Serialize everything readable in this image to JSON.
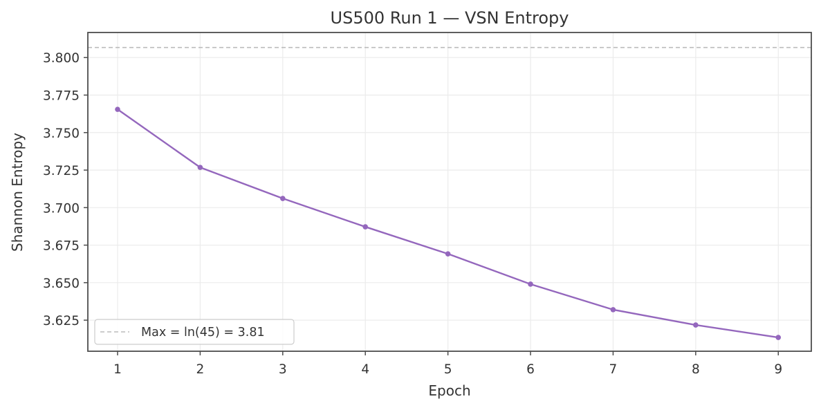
{
  "chart_data": {
    "type": "line",
    "title": "US500 Run 1 — VSN Entropy",
    "xlabel": "Epoch",
    "ylabel": "Shannon Entropy",
    "x": [
      1,
      2,
      3,
      4,
      5,
      6,
      7,
      8,
      9
    ],
    "series": [
      {
        "name": "VSN Entropy",
        "color": "#9467bd",
        "marker": "circle",
        "values": [
          3.7655,
          3.7268,
          3.7061,
          3.6872,
          3.6692,
          3.649,
          3.632,
          3.6218,
          3.6135
        ]
      }
    ],
    "reference_lines": [
      {
        "label": "Max = ln(45) = 3.81",
        "value": 3.8067,
        "style": "dashed",
        "color": "#bbbbbb"
      }
    ],
    "xticks": [
      1,
      2,
      3,
      4,
      5,
      6,
      7,
      8,
      9
    ],
    "xtick_labels": [
      "1",
      "2",
      "3",
      "4",
      "5",
      "6",
      "7",
      "8",
      "9"
    ],
    "yticks": [
      3.625,
      3.65,
      3.675,
      3.7,
      3.725,
      3.75,
      3.775,
      3.8
    ],
    "ytick_labels": [
      "3.625",
      "3.650",
      "3.675",
      "3.700",
      "3.725",
      "3.750",
      "3.775",
      "3.800"
    ],
    "xlim": [
      0.64,
      9.4
    ],
    "ylim": [
      3.6043,
      3.8167
    ],
    "grid": true,
    "legend": {
      "position": "lower left",
      "entries": [
        "Max = ln(45) = 3.81"
      ]
    }
  }
}
